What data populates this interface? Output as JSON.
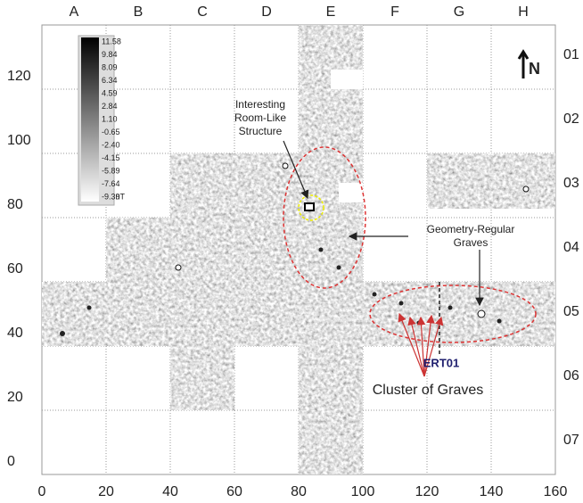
{
  "map": {
    "column_labels": [
      "A",
      "B",
      "C",
      "D",
      "E",
      "F",
      "G",
      "H"
    ],
    "row_labels": [
      "01",
      "02",
      "03",
      "04",
      "05",
      "06",
      "07"
    ],
    "xlim": [
      0,
      160
    ],
    "ylim": [
      0,
      140
    ],
    "xticks": [
      0,
      20,
      40,
      60,
      80,
      100,
      120,
      140,
      160
    ],
    "yticks": [
      0,
      20,
      40,
      60,
      80,
      100,
      120
    ],
    "north": "N",
    "legend": {
      "labels": [
        11.58,
        9.84,
        8.09,
        6.34,
        4.59,
        2.84,
        {
          "value": 1.1,
          "label": "1.10"
        },
        -0.65,
        {
          "value": -2.4,
          "label": "-2.40"
        },
        -4.15,
        -5.89,
        -7.64,
        -9.39
      ],
      "unit": "nT"
    },
    "annotations": {
      "room": [
        "Interesting",
        "Room-Like",
        "Structure"
      ],
      "graves": [
        "Geometry-Regular",
        "Graves"
      ],
      "ert": "ERT01",
      "cluster": "Cluster of Graves"
    }
  }
}
